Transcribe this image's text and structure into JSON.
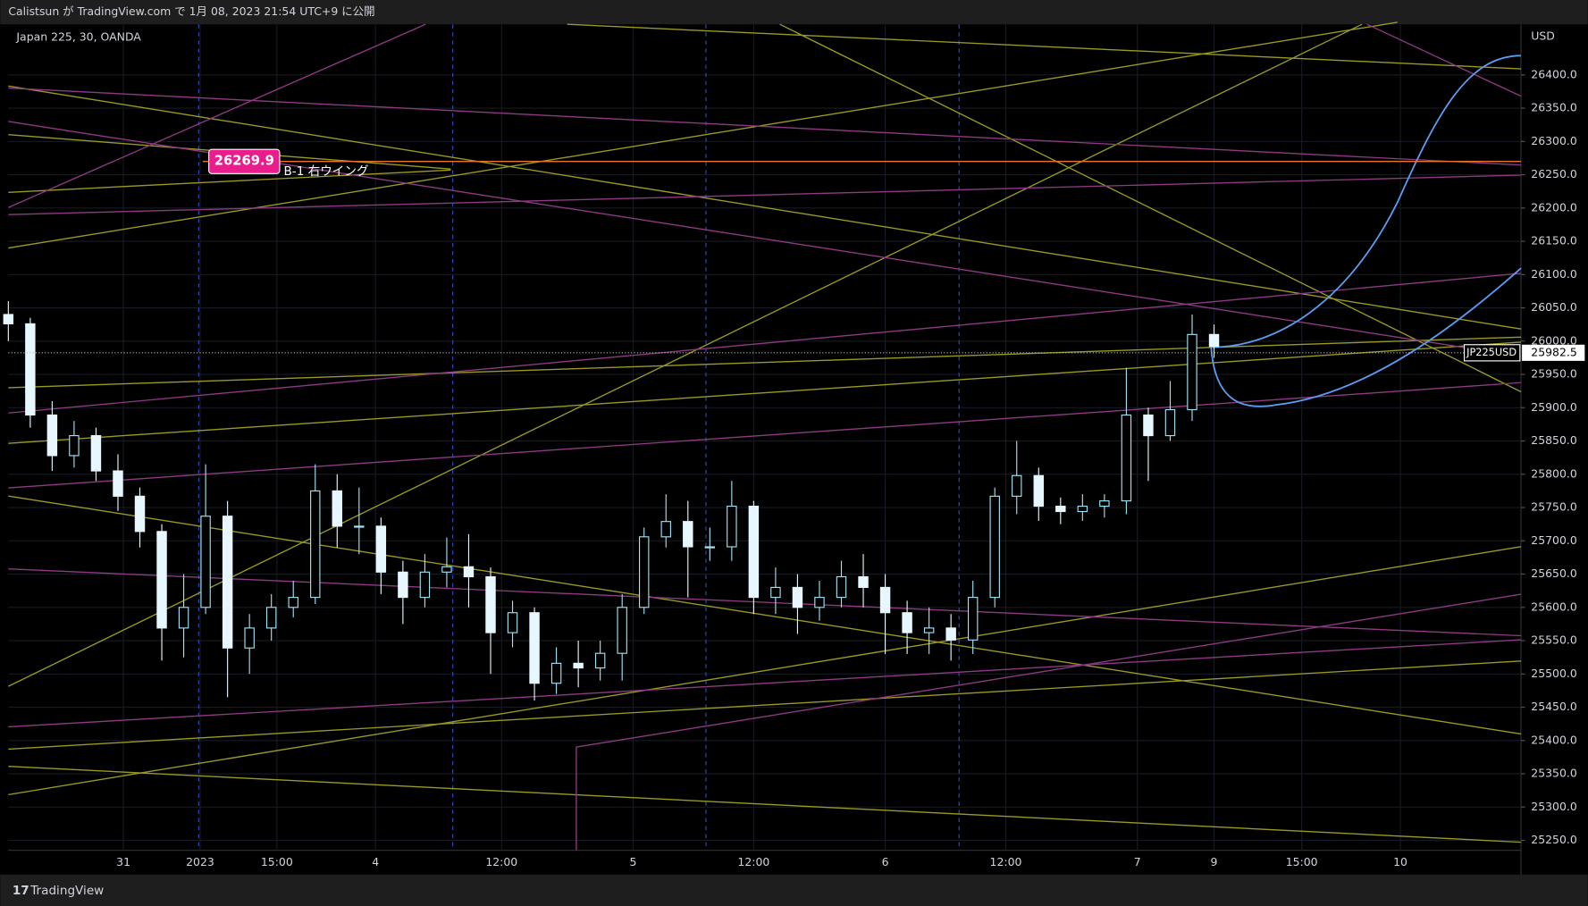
{
  "header": {
    "text": "Calistsun が TradingView.com で 1月 08, 2023 21:54 UTC+9 に公開"
  },
  "footer": {
    "brand": "TradingView"
  },
  "chart_data": {
    "type": "candlestick",
    "title": "Japan 225, 30, OANDA",
    "y_axis_label": "USD",
    "x": [
      0,
      4,
      8,
      12,
      16,
      20,
      24,
      28,
      32,
      36,
      40,
      44,
      48,
      52,
      56,
      60,
      64,
      68,
      72,
      76,
      80,
      84,
      88,
      92,
      96,
      100,
      104,
      108,
      112,
      116,
      120,
      124,
      128,
      132,
      136,
      140,
      144,
      148,
      152,
      156,
      160,
      164,
      168,
      172,
      176,
      180,
      184,
      188,
      192,
      196,
      200,
      204,
      208,
      212,
      216,
      220
    ],
    "open": [
      26040,
      26026,
      25889,
      25828,
      25858,
      25805,
      25767,
      25714,
      25569,
      25600,
      25737,
      25539,
      25569,
      25600,
      25615,
      25775,
      25722,
      25722,
      25653,
      25615,
      25653,
      25661,
      25646,
      25562,
      25592,
      25486,
      25516,
      25509,
      25531,
      25600,
      25706,
      25729,
      25691,
      25691,
      25752,
      25615,
      25630,
      25600,
      25615,
      25646,
      25630,
      25592,
      25562,
      25569,
      25551,
      25615,
      25767,
      25798,
      25752,
      25744,
      25752,
      25760,
      25889,
      25858,
      25897,
      26010
    ],
    "high": [
      26060,
      26035,
      25910,
      25880,
      25870,
      25830,
      25780,
      25725,
      25650,
      25815,
      25760,
      25590,
      25620,
      25640,
      25815,
      25800,
      25780,
      25735,
      25670,
      25680,
      25705,
      25710,
      25660,
      25610,
      25600,
      25540,
      25550,
      25550,
      25620,
      25720,
      25770,
      25760,
      25720,
      25790,
      25760,
      25660,
      25650,
      25640,
      25670,
      25680,
      25650,
      25610,
      25600,
      25590,
      25640,
      25780,
      25850,
      25810,
      25765,
      25770,
      25770,
      25960,
      25900,
      25940,
      26040,
      26025
    ],
    "low": [
      26000,
      25870,
      25805,
      25810,
      25790,
      25745,
      25690,
      25520,
      25525,
      25590,
      25465,
      25500,
      25550,
      25585,
      25605,
      25690,
      25680,
      25620,
      25575,
      25600,
      25630,
      25600,
      25500,
      25540,
      25460,
      25470,
      25480,
      25490,
      25490,
      25590,
      25690,
      25615,
      25670,
      25670,
      25590,
      25590,
      25560,
      25580,
      25600,
      25600,
      25530,
      25530,
      25530,
      25520,
      25530,
      25600,
      25740,
      25730,
      25725,
      25730,
      25735,
      25740,
      25790,
      25850,
      25880,
      25975
    ],
    "close": [
      26026,
      25889,
      25828,
      25858,
      25805,
      25767,
      25714,
      25569,
      25600,
      25737,
      25539,
      25569,
      25600,
      25615,
      25775,
      25722,
      25722,
      25653,
      25615,
      25653,
      25661,
      25646,
      25562,
      25592,
      25486,
      25516,
      25509,
      25531,
      25600,
      25706,
      25729,
      25691,
      25691,
      25752,
      25615,
      25630,
      25600,
      25615,
      25646,
      25630,
      25592,
      25562,
      25569,
      25551,
      25615,
      25767,
      25798,
      25752,
      25744,
      25752,
      25760,
      25889,
      25858,
      25897,
      26010,
      25992
    ],
    "up_color": "#9fe3f5",
    "down_color": "#e6f7ff",
    "xlim": [
      0,
      276
    ],
    "ylim": [
      25235,
      26476
    ],
    "xticks": [
      {
        "value": 21,
        "label": "31"
      },
      {
        "value": 35,
        "label": "2023"
      },
      {
        "value": 49,
        "label": "15:00"
      },
      {
        "value": 67,
        "label": "4"
      },
      {
        "value": 90,
        "label": "12:00"
      },
      {
        "value": 114,
        "label": "5"
      },
      {
        "value": 136,
        "label": "12:00"
      },
      {
        "value": 160,
        "label": "6"
      },
      {
        "value": 182,
        "label": "12:00"
      },
      {
        "value": 206,
        "label": "7"
      },
      {
        "value": 220,
        "label": "9"
      },
      {
        "value": 236,
        "label": "15:00"
      },
      {
        "value": 254,
        "label": "10"
      }
    ],
    "yticks": [
      {
        "value": 25250,
        "label": "25250.0"
      },
      {
        "value": 25300,
        "label": "25300.0"
      },
      {
        "value": 25350,
        "label": "25350.0"
      },
      {
        "value": 25400,
        "label": "25400.0"
      },
      {
        "value": 25450,
        "label": "25450.0"
      },
      {
        "value": 25500,
        "label": "25500.0"
      },
      {
        "value": 25550,
        "label": "25550.0"
      },
      {
        "value": 25600,
        "label": "25600.0"
      },
      {
        "value": 25650,
        "label": "25650.0"
      },
      {
        "value": 25700,
        "label": "25700.0"
      },
      {
        "value": 25750,
        "label": "25750.0"
      },
      {
        "value": 25800,
        "label": "25800.0"
      },
      {
        "value": 25850,
        "label": "25850.0"
      },
      {
        "value": 25900,
        "label": "25900.0"
      },
      {
        "value": 25950,
        "label": "25950.0"
      },
      {
        "value": 26000,
        "label": "26000.0"
      },
      {
        "value": 26050,
        "label": "26050.0"
      },
      {
        "value": 26100,
        "label": "26100.0"
      },
      {
        "value": 26150,
        "label": "26150.0"
      },
      {
        "value": 26200,
        "label": "26200.0"
      },
      {
        "value": 26250,
        "label": "26250.0"
      },
      {
        "value": 26300,
        "label": "26300.0"
      },
      {
        "value": 26350,
        "label": "26350.0"
      },
      {
        "value": 26400,
        "label": "26400.0"
      }
    ],
    "grid": true,
    "last_price": {
      "symbol": "JP225USD",
      "value": 25982.5
    },
    "annotations": [
      {
        "value": 26269.9,
        "text": "B-1 右ウイング",
        "color": "#e8742a"
      }
    ]
  }
}
